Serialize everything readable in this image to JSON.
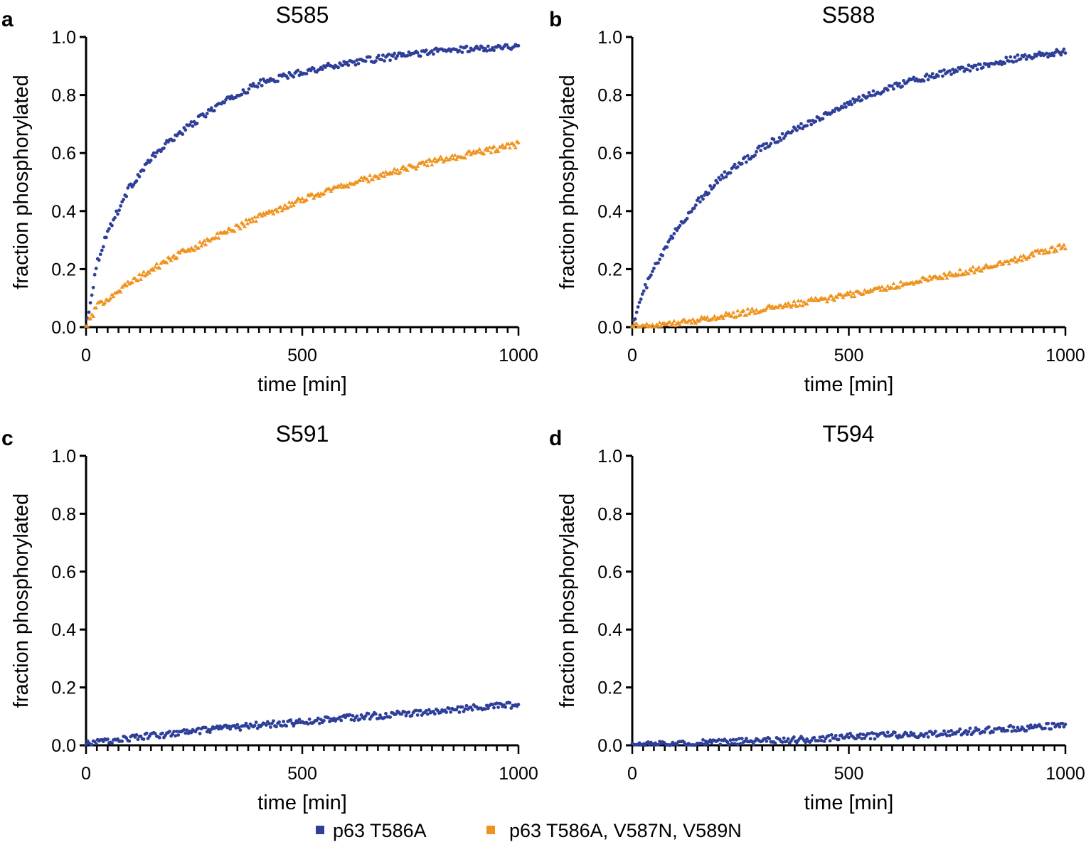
{
  "legend": [
    {
      "label": "p63 T586A",
      "color": "#2e3f99",
      "marker": "circle"
    },
    {
      "label": "p63 T586A, V587N, V589N",
      "color": "#f0931e",
      "marker": "triangle"
    }
  ],
  "chart_data": [
    {
      "panel": "a",
      "type": "scatter",
      "title": "S585",
      "xlabel": "time [min]",
      "ylabel": "fraction phosphorylated",
      "xlim": [
        0,
        1000
      ],
      "ylim": [
        0,
        1.0
      ],
      "xticks": [
        0,
        500,
        1000
      ],
      "xtick_labels": [
        "0",
        "500",
        "1000"
      ],
      "yticks": [
        0,
        0.2,
        0.4,
        0.6,
        0.8,
        1.0
      ],
      "ytick_labels": [
        "0.0",
        "0.2",
        "0.4",
        "0.6",
        "0.8",
        "1.0"
      ],
      "series": [
        {
          "name": "p63 T586A",
          "color": "#2e3f99",
          "marker": "circle",
          "x": [
            0,
            25,
            50,
            100,
            150,
            200,
            300,
            400,
            500,
            600,
            700,
            800,
            900,
            1000
          ],
          "values": [
            0.0,
            0.22,
            0.33,
            0.48,
            0.58,
            0.65,
            0.76,
            0.84,
            0.88,
            0.91,
            0.93,
            0.95,
            0.96,
            0.97
          ]
        },
        {
          "name": "p63 T586A, V587N, V589N",
          "color": "#f0931e",
          "marker": "triangle",
          "x": [
            0,
            25,
            50,
            100,
            200,
            300,
            400,
            500,
            600,
            700,
            800,
            900,
            1000
          ],
          "values": [
            0.0,
            0.07,
            0.1,
            0.15,
            0.24,
            0.31,
            0.38,
            0.44,
            0.49,
            0.53,
            0.57,
            0.6,
            0.63
          ]
        }
      ]
    },
    {
      "panel": "b",
      "type": "scatter",
      "title": "S588",
      "xlabel": "time [min]",
      "ylabel": "fraction phosphorylated",
      "xlim": [
        0,
        1000
      ],
      "ylim": [
        0,
        1.0
      ],
      "xticks": [
        0,
        500,
        1000
      ],
      "xtick_labels": [
        "0",
        "500",
        "1000"
      ],
      "yticks": [
        0,
        0.2,
        0.4,
        0.6,
        0.8,
        1.0
      ],
      "ytick_labels": [
        "0.0",
        "0.2",
        "0.4",
        "0.6",
        "0.8",
        "1.0"
      ],
      "series": [
        {
          "name": "p63 T586A",
          "color": "#2e3f99",
          "marker": "circle",
          "x": [
            0,
            25,
            50,
            100,
            150,
            200,
            300,
            400,
            500,
            600,
            700,
            800,
            900,
            1000
          ],
          "values": [
            0.0,
            0.12,
            0.2,
            0.33,
            0.43,
            0.51,
            0.62,
            0.7,
            0.77,
            0.83,
            0.87,
            0.9,
            0.93,
            0.95
          ]
        },
        {
          "name": "p63 T586A, V587N, V589N",
          "color": "#f0931e",
          "marker": "triangle",
          "x": [
            0,
            50,
            100,
            200,
            300,
            400,
            500,
            600,
            700,
            800,
            900,
            1000
          ],
          "values": [
            0.0,
            0.004,
            0.013,
            0.035,
            0.06,
            0.085,
            0.11,
            0.14,
            0.17,
            0.2,
            0.24,
            0.28
          ]
        }
      ]
    },
    {
      "panel": "c",
      "type": "scatter",
      "title": "S591",
      "xlabel": "time [min]",
      "ylabel": "fraction phosphorylated",
      "xlim": [
        0,
        1000
      ],
      "ylim": [
        0,
        1.0
      ],
      "xticks": [
        0,
        500,
        1000
      ],
      "xtick_labels": [
        "0",
        "500",
        "1000"
      ],
      "yticks": [
        0,
        0.2,
        0.4,
        0.6,
        0.8,
        1.0
      ],
      "ytick_labels": [
        "0.0",
        "0.2",
        "0.4",
        "0.6",
        "0.8",
        "1.0"
      ],
      "series": [
        {
          "name": "p63 T586A",
          "color": "#2e3f99",
          "marker": "circle",
          "x": [
            0,
            100,
            200,
            300,
            400,
            500,
            600,
            700,
            800,
            900,
            1000
          ],
          "values": [
            0.005,
            0.025,
            0.04,
            0.055,
            0.07,
            0.08,
            0.095,
            0.105,
            0.115,
            0.13,
            0.14
          ]
        }
      ]
    },
    {
      "panel": "d",
      "type": "scatter",
      "title": "T594",
      "xlabel": "time [min]",
      "ylabel": "fraction  phosphorylated",
      "xlim": [
        0,
        1000
      ],
      "ylim": [
        0,
        1.0
      ],
      "xticks": [
        0,
        500,
        1000
      ],
      "xtick_labels": [
        "0",
        "500",
        "1000"
      ],
      "yticks": [
        0,
        0.2,
        0.4,
        0.6,
        0.8,
        1.0
      ],
      "ytick_labels": [
        "0.0",
        "0.2",
        "0.4",
        "0.6",
        "0.8",
        "1.0"
      ],
      "series": [
        {
          "name": "p63 T586A",
          "color": "#2e3f99",
          "marker": "circle",
          "x": [
            0,
            100,
            200,
            300,
            400,
            500,
            600,
            700,
            800,
            900,
            1000
          ],
          "values": [
            0.0,
            0.005,
            0.01,
            0.015,
            0.02,
            0.03,
            0.035,
            0.04,
            0.05,
            0.06,
            0.07
          ]
        }
      ]
    }
  ]
}
